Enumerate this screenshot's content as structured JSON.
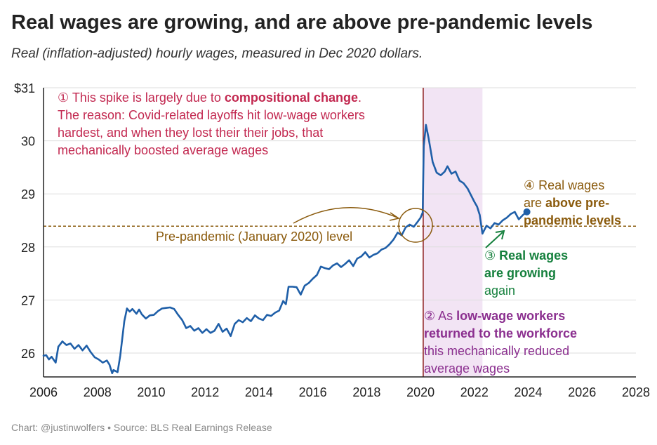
{
  "title": "Real wages are growing, and are above pre-pandemic levels",
  "subtitle": "Real (inflation-adjusted) hourly wages, measured in Dec 2020 dollars.",
  "footer": "Chart: @justinwolfers • Source: BLS Real Earnings Release",
  "colors": {
    "line": "#1f5fa8",
    "annotation1": "#c2274f",
    "annotation2": "#8b2f8f",
    "annotation3": "#15803d",
    "annotation4": "#8a5a0c",
    "shade": "#f2e4f4",
    "vline": "#8b1a1a"
  },
  "chart_data": {
    "type": "line",
    "xlim": [
      2006,
      2028
    ],
    "ylim": [
      25.55,
      31
    ],
    "x_ticks": [
      "2006",
      "2008",
      "2010",
      "2012",
      "2014",
      "2016",
      "2018",
      "2020",
      "2022",
      "2024",
      "2026",
      "2028"
    ],
    "y_ticks": [
      "$31",
      "30",
      "29",
      "28",
      "27",
      "26"
    ],
    "y_tick_values": [
      31,
      30,
      29,
      28,
      27,
      26
    ],
    "reference_level": 28.39,
    "reference_label": "Pre-pandemic (January 2020) level",
    "shaded_range": [
      2020.1,
      2022.3
    ],
    "vertical_line_x": 2020.1,
    "series": [
      {
        "x": [
          2006.0,
          2006.1,
          2006.2,
          2006.3,
          2006.45,
          2006.55,
          2006.7,
          2006.85,
          2007.0,
          2007.15,
          2007.3,
          2007.45,
          2007.6,
          2007.75,
          2007.9,
          2008.05,
          2008.2,
          2008.35,
          2008.45,
          2008.55,
          2008.6,
          2008.75,
          2008.85,
          2009.0,
          2009.1,
          2009.2,
          2009.3,
          2009.45,
          2009.55,
          2009.65,
          2009.8,
          2009.95,
          2010.1,
          2010.25,
          2010.4,
          2010.55,
          2010.7,
          2010.85,
          2011.0,
          2011.15,
          2011.3,
          2011.45,
          2011.6,
          2011.75,
          2011.9,
          2012.05,
          2012.2,
          2012.35,
          2012.5,
          2012.65,
          2012.8,
          2012.95,
          2013.1,
          2013.25,
          2013.4,
          2013.55,
          2013.7,
          2013.85,
          2014.0,
          2014.15,
          2014.3,
          2014.45,
          2014.6,
          2014.75,
          2014.9,
          2015.0,
          2015.1,
          2015.25,
          2015.4,
          2015.55,
          2015.7,
          2015.85,
          2016.0,
          2016.15,
          2016.3,
          2016.45,
          2016.6,
          2016.75,
          2016.9,
          2017.05,
          2017.2,
          2017.35,
          2017.5,
          2017.65,
          2017.8,
          2017.95,
          2018.1,
          2018.25,
          2018.4,
          2018.55,
          2018.7,
          2018.85,
          2019.0,
          2019.15,
          2019.3,
          2019.45,
          2019.6,
          2019.75,
          2019.9,
          2020.0,
          2020.08,
          2020.12,
          2020.2,
          2020.3,
          2020.45,
          2020.6,
          2020.75,
          2020.9,
          2021.0,
          2021.15,
          2021.3,
          2021.45,
          2021.6,
          2021.75,
          2021.9,
          2022.0,
          2022.1,
          2022.2,
          2022.3,
          2022.45,
          2022.6,
          2022.75,
          2022.9,
          2023.05,
          2023.2,
          2023.35,
          2023.5,
          2023.65,
          2023.8,
          2023.9
        ],
        "values": [
          25.95,
          25.96,
          25.88,
          25.93,
          25.82,
          26.12,
          26.22,
          26.15,
          26.18,
          26.08,
          26.15,
          26.05,
          26.14,
          26.02,
          25.92,
          25.88,
          25.82,
          25.86,
          25.78,
          25.62,
          25.68,
          25.64,
          25.95,
          26.6,
          26.84,
          26.78,
          26.83,
          26.74,
          26.82,
          26.73,
          26.65,
          26.71,
          26.72,
          26.79,
          26.84,
          26.85,
          26.86,
          26.83,
          26.72,
          26.62,
          26.47,
          26.51,
          26.42,
          26.47,
          26.38,
          26.45,
          26.38,
          26.42,
          26.55,
          26.4,
          26.46,
          26.32,
          26.55,
          26.62,
          26.58,
          26.66,
          26.6,
          26.71,
          26.65,
          26.62,
          26.72,
          26.7,
          26.76,
          26.8,
          26.98,
          26.92,
          27.25,
          27.25,
          27.24,
          27.1,
          27.27,
          27.32,
          27.4,
          27.47,
          27.63,
          27.6,
          27.58,
          27.65,
          27.69,
          27.62,
          27.68,
          27.75,
          27.64,
          27.78,
          27.82,
          27.9,
          27.8,
          27.85,
          27.88,
          27.95,
          27.98,
          28.05,
          28.14,
          28.27,
          28.22,
          28.37,
          28.42,
          28.38,
          28.48,
          28.55,
          28.65,
          29.9,
          30.3,
          30.05,
          29.6,
          29.4,
          29.35,
          29.42,
          29.52,
          29.38,
          29.42,
          29.25,
          29.2,
          29.1,
          28.95,
          28.85,
          28.76,
          28.6,
          28.25,
          28.4,
          28.35,
          28.45,
          28.42,
          28.5,
          28.55,
          28.62,
          28.66,
          28.52,
          28.6,
          28.64
        ],
        "end_point": [
          2023.95,
          28.66
        ]
      }
    ],
    "annotations": {
      "a1_line1_prefix": "① This spike is largely due to ",
      "a1_line1_bold": "compositional change",
      "a1_line1_suffix": ".",
      "a1_line2": "The reason: Covid-related layoffs hit low-wage workers",
      "a1_line3": "hardest, and when they lost their their jobs, that",
      "a1_line4": "mechanically boosted average wages",
      "a2_line1_prefix": "② As ",
      "a2_line1_bold": "low-wage workers",
      "a2_line2_bold": "returned to the workforce",
      "a2_line3": "this mechanically reduced",
      "a2_line4": "average wages",
      "a3_line1_prefix": "③ ",
      "a3_line1_bold": "Real wages",
      "a3_line2_bold": "are growing",
      "a3_line3": "again",
      "a4_line1": "④ Real wages",
      "a4_line2_prefix": "are ",
      "a4_line2_bold": "above pre-",
      "a4_line3_bold": "pandemic levels"
    }
  }
}
